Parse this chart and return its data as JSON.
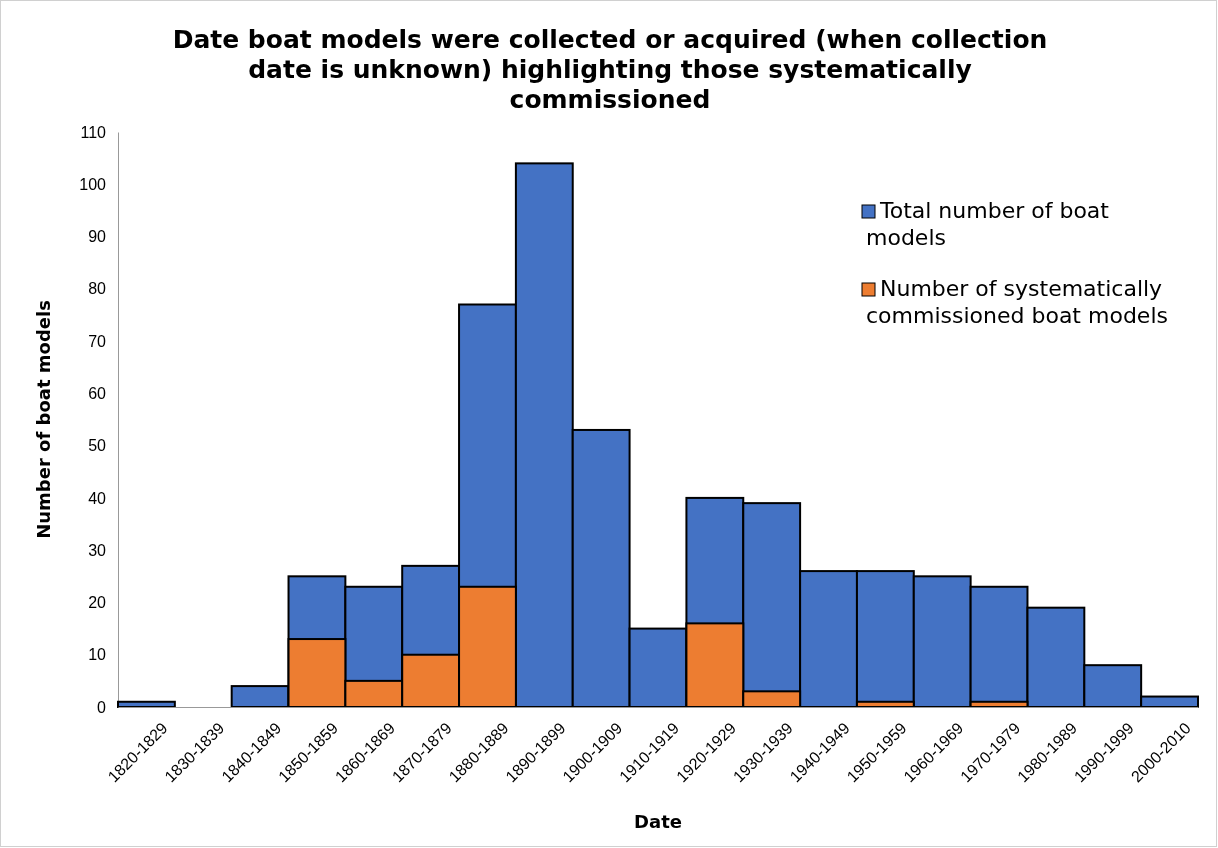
{
  "chart_data": {
    "type": "bar",
    "title": "Date boat models were collected or acquired (when collection date is unknown) highlighting those systematically commissioned",
    "xlabel": "Date",
    "ylabel": "Number of boat models",
    "categories": [
      "1820-1829",
      "1830-1839",
      "1840-1849",
      "1850-1859",
      "1860-1869",
      "1870-1879",
      "1880-1889",
      "1890-1899",
      "1900-1909",
      "1910-1919",
      "1920-1929",
      "1930-1939",
      "1940-1949",
      "1950-1959",
      "1960-1969",
      "1970-1979",
      "1980-1989",
      "1990-1999",
      "2000-2010"
    ],
    "series": [
      {
        "name": "Total number of boat models",
        "color": "#4472c4",
        "values": [
          1,
          0,
          4,
          25,
          23,
          27,
          77,
          104,
          53,
          15,
          40,
          39,
          26,
          26,
          25,
          23,
          19,
          8,
          2
        ]
      },
      {
        "name": "Number of systematically commissioned boat models",
        "color": "#ed7d31",
        "values": [
          0,
          0,
          0,
          13,
          5,
          10,
          23,
          0,
          0,
          0,
          16,
          3,
          0,
          1,
          0,
          1,
          0,
          0,
          0
        ]
      }
    ],
    "ylim": [
      0,
      110
    ],
    "yticks": [
      0,
      10,
      20,
      30,
      40,
      50,
      60,
      70,
      80,
      90,
      100,
      110
    ],
    "grid": false,
    "legend": "top right"
  }
}
